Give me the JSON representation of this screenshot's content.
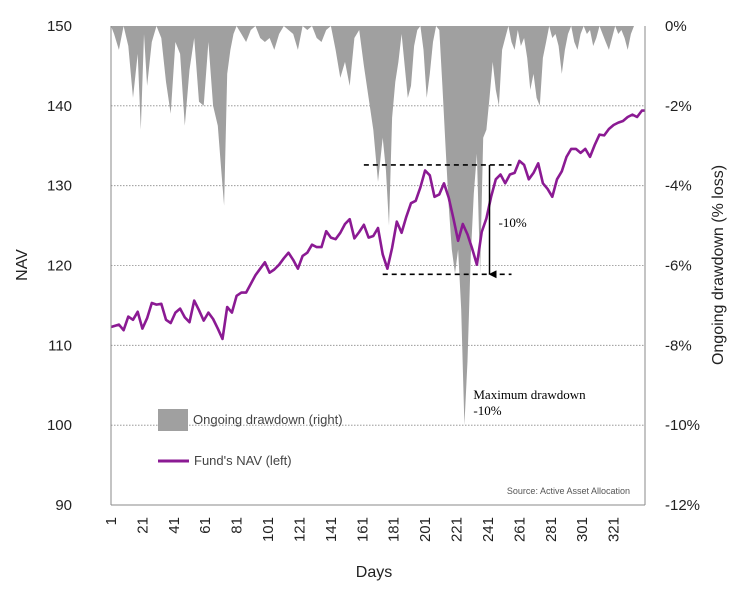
{
  "chart_data": {
    "type": "line",
    "title": "",
    "xlabel": "Days",
    "ylabel_left": "NAV",
    "ylabel_right": "Ongoing drawdown (% loss)",
    "xlim": [
      1,
      341
    ],
    "ylim_left": [
      90,
      150
    ],
    "ylim_right": [
      -12,
      0
    ],
    "x_ticks": [
      1,
      21,
      41,
      61,
      81,
      101,
      121,
      141,
      161,
      181,
      201,
      221,
      241,
      261,
      281,
      301,
      321
    ],
    "y_ticks_left": [
      90,
      100,
      110,
      120,
      130,
      140,
      150
    ],
    "y_ticks_right_values": [
      -12,
      -10,
      -8,
      -6,
      -4,
      -2,
      0
    ],
    "y_ticks_right_labels": [
      "-12%",
      "-10%",
      "-8%",
      "-6%",
      "-4%",
      "-2%",
      "0%"
    ],
    "grid": true,
    "series": [
      {
        "name": "Fund's NAV (left)",
        "axis": "left",
        "color": "#8b1a93",
        "x": [
          1,
          6,
          9,
          12,
          15,
          18,
          21,
          24,
          27,
          30,
          33,
          36,
          39,
          42,
          45,
          48,
          51,
          54,
          57,
          60,
          63,
          66,
          69,
          72,
          75,
          78,
          81,
          84,
          87,
          90,
          93,
          96,
          99,
          102,
          105,
          108,
          111,
          114,
          117,
          120,
          123,
          126,
          129,
          132,
          135,
          138,
          141,
          144,
          147,
          150,
          153,
          156,
          159,
          162,
          165,
          168,
          171,
          174,
          177,
          180,
          183,
          186,
          189,
          192,
          195,
          198,
          201,
          204,
          207,
          210,
          213,
          216,
          219,
          222,
          225,
          228,
          231,
          234,
          237,
          240,
          243,
          246,
          249,
          252,
          255,
          258,
          261,
          264,
          267,
          270,
          273,
          276,
          279,
          282,
          285,
          288,
          291,
          294,
          297,
          300,
          303,
          306,
          309,
          312,
          315,
          318,
          321,
          324,
          327,
          330,
          333,
          336,
          339,
          341
        ],
        "values": [
          112.3,
          112.6,
          111.9,
          113.6,
          113.2,
          114.2,
          112.1,
          113.4,
          115.3,
          115.1,
          115.2,
          113.2,
          112.8,
          114.1,
          114.6,
          113.5,
          112.9,
          115.6,
          114.4,
          113.1,
          114.1,
          113.3,
          112.1,
          110.8,
          114.8,
          114.1,
          116.2,
          116.6,
          116.6,
          117.7,
          118.8,
          119.6,
          120.4,
          119.1,
          119.5,
          120.1,
          120.9,
          121.6,
          120.7,
          119.6,
          121.2,
          121.6,
          122.6,
          122.3,
          122.3,
          124.3,
          123.5,
          123.3,
          124.1,
          125.2,
          125.8,
          123.4,
          124.2,
          125.1,
          123.5,
          123.7,
          124.7,
          121.4,
          119.6,
          122.2,
          125.5,
          124.1,
          126.1,
          127.8,
          128.1,
          129.8,
          131.9,
          131.3,
          128.6,
          128.9,
          130.3,
          128.5,
          125.9,
          123.1,
          125.2,
          123.9,
          122.1,
          120.1,
          124.2,
          125.9,
          128.6,
          130.8,
          131.4,
          130.3,
          131.4,
          131.6,
          133.1,
          132.6,
          130.8,
          131.6,
          132.8,
          130.3,
          129.6,
          128.6,
          130.8,
          131.8,
          133.6,
          134.6,
          134.6,
          134.1,
          134.6,
          133.6,
          135.1,
          136.4,
          136.3,
          137.1,
          137.6,
          137.9,
          138.1,
          138.6,
          138.9,
          138.6,
          139.4,
          139.4
        ]
      },
      {
        "name": "Ongoing drawdown (right)",
        "axis": "right",
        "color": "#a0a0a0",
        "x": [
          1,
          3,
          6,
          9,
          12,
          15,
          18,
          20,
          22,
          24,
          27,
          30,
          33,
          36,
          39,
          42,
          45,
          48,
          51,
          54,
          57,
          60,
          63,
          66,
          69,
          71,
          73,
          75,
          77,
          79,
          81,
          84,
          87,
          90,
          93,
          96,
          99,
          102,
          105,
          108,
          111,
          114,
          117,
          120,
          123,
          126,
          129,
          132,
          135,
          138,
          141,
          144,
          147,
          150,
          153,
          156,
          159,
          162,
          165,
          168,
          171,
          174,
          176,
          178,
          180,
          182,
          184,
          186,
          188,
          190,
          192,
          194,
          196,
          198,
          200,
          202,
          204,
          206,
          208,
          210,
          212,
          214,
          216,
          218,
          220,
          222,
          224,
          226,
          228,
          230,
          232,
          234,
          236,
          238,
          240,
          242,
          244,
          246,
          248,
          250,
          252,
          254,
          256,
          258,
          260,
          262,
          264,
          266,
          268,
          270,
          272,
          274,
          276,
          278,
          280,
          282,
          284,
          286,
          288,
          290,
          292,
          294,
          296,
          298,
          300,
          302,
          304,
          306,
          308,
          310,
          312,
          314,
          316,
          318,
          320,
          322,
          324,
          326,
          328,
          330,
          332,
          334,
          336,
          338,
          341
        ],
        "values": [
          0,
          -0.2,
          -0.6,
          0,
          -0.5,
          -1.8,
          -0.7,
          -2.6,
          -0.2,
          -1.5,
          -0.4,
          0,
          -0.3,
          -1.4,
          -2.2,
          -0.4,
          -0.7,
          -2.5,
          -1.1,
          -0.3,
          -1.9,
          -2.0,
          -0.4,
          -2.0,
          -2.5,
          -3.5,
          -4.5,
          -1.2,
          -0.6,
          -0.2,
          0,
          -0.2,
          -0.4,
          -0.1,
          0,
          -0.3,
          -0.4,
          -0.3,
          -0.6,
          -0.2,
          0,
          -0.1,
          -0.2,
          -0.6,
          0,
          -0.1,
          0,
          -0.3,
          -0.4,
          -0.1,
          0,
          -0.6,
          -1.3,
          -0.9,
          -1.5,
          -0.3,
          -0.1,
          -1.0,
          -1.8,
          -2.6,
          -3.9,
          -2.8,
          -3.6,
          -5.0,
          -2.3,
          -1.4,
          -0.9,
          -0.2,
          -1.0,
          -1.8,
          -1.5,
          -0.5,
          -0.1,
          0,
          -0.6,
          -1.8,
          -1.2,
          -0.4,
          0,
          -0.1,
          -1.5,
          -3.0,
          -4.5,
          -5.6,
          -6.2,
          -5.6,
          -7.1,
          -10.0,
          -8.4,
          -5.8,
          -4.2,
          -3.2,
          -6.2,
          -2.8,
          -2.6,
          -1.8,
          -0.9,
          -1.6,
          -2.0,
          -0.6,
          -0.3,
          0,
          -0.4,
          -0.6,
          -0.1,
          -0.5,
          -0.3,
          -0.8,
          -1.6,
          -1.2,
          -1.8,
          -2.0,
          -0.8,
          -0.4,
          0,
          -0.3,
          -0.2,
          -0.5,
          -1.2,
          -0.6,
          -0.2,
          0,
          -0.4,
          -0.6,
          -0.2,
          0,
          -0.2,
          -0.1,
          -0.5,
          -0.3,
          0,
          -0.2,
          -0.4,
          -0.6,
          -0.3,
          0,
          -0.2,
          -0.1,
          -0.3,
          -0.6,
          -0.2,
          0,
          0,
          0,
          0
        ]
      }
    ],
    "legend": [
      {
        "label": "Ongoing drawdown (right)",
        "kind": "area",
        "color": "#a0a0a0"
      },
      {
        "label": "Fund's NAV (left)",
        "kind": "line",
        "color": "#8b1a93"
      }
    ],
    "annotations": {
      "peak_nav": 132.6,
      "trough_nav": 118.9,
      "peak_day_start": 162,
      "trough_day_start": 174,
      "line_day_end": 256,
      "arrow_day": 242,
      "arrow_label": "-10%",
      "max_drawdown_label": "Maximum drawdown",
      "max_drawdown_value": "-10%",
      "source": "Source: Active Asset Allocation"
    }
  }
}
